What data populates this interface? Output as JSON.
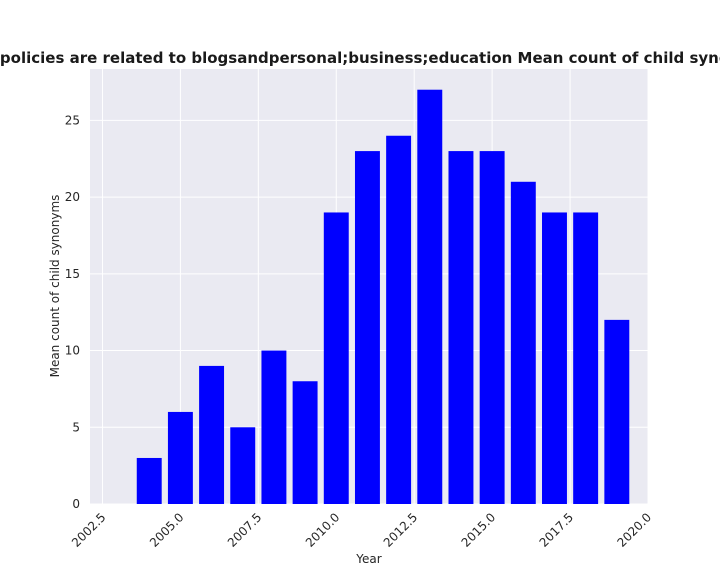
{
  "chart_data": {
    "type": "bar",
    "title": "Years in which privacy policies are related to blogsandpersonal;business;education Mean count of child synonyms in privacy policies",
    "xlabel": "Year",
    "ylabel": "Mean count of child synonyms",
    "x": [
      2003,
      2004,
      2005,
      2006,
      2007,
      2008,
      2009,
      2010,
      2011,
      2012,
      2013,
      2014,
      2015,
      2016,
      2017,
      2018,
      2019
    ],
    "values": [
      0,
      3,
      6,
      9,
      5,
      10,
      8,
      19,
      23,
      24,
      27,
      23,
      23,
      21,
      19,
      19,
      12
    ],
    "xlim": [
      2002.1,
      2020.0
    ],
    "ylim": [
      0,
      28.35
    ],
    "xticks": [
      "2002.5",
      "2005.0",
      "2007.5",
      "2010.0",
      "2012.5",
      "2015.0",
      "2017.5",
      "2020.0"
    ],
    "yticks": [
      "0",
      "5",
      "10",
      "15",
      "20",
      "25"
    ],
    "bar_color": "#0000ff",
    "background_color": "#eaeaf2",
    "grid": true,
    "legend": "none"
  }
}
